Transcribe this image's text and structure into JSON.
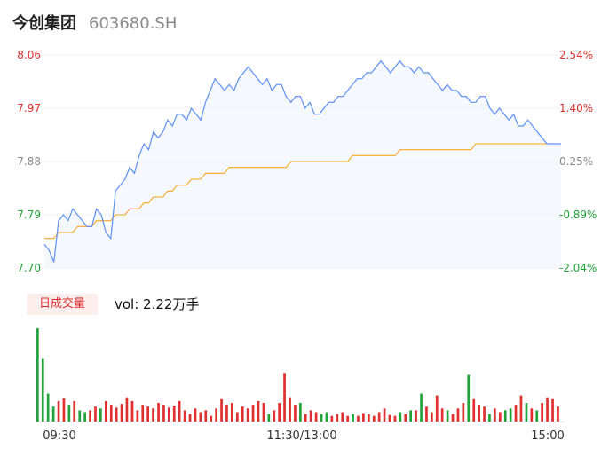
{
  "header": {
    "name": "今创集团",
    "code": "603680.SH"
  },
  "volume_panel": {
    "tab_label": "日成交量",
    "readout_label": "vol: ",
    "readout_value": "2.22万手"
  },
  "colors": {
    "price_line": "#5b8ff9",
    "avg_line": "#f5a623",
    "up": "#e03030",
    "down": "#22a33a",
    "neutral": "#8a8a8a",
    "area_fill": "#eef3fc"
  },
  "chart_data": [
    {
      "type": "line",
      "title": "",
      "prev_close": 7.86,
      "ylim": [
        7.7,
        8.06
      ],
      "y_ticks": [
        "8.06",
        "7.97",
        "7.88",
        "7.79",
        "7.70"
      ],
      "y_ticks_right": [
        "2.54%",
        "1.40%",
        "0.25%",
        "-0.89%",
        "-2.04%"
      ],
      "x_ticks": [
        "09:30",
        "11:30/13:00",
        "15:00"
      ],
      "series": [
        {
          "role": "price",
          "values": [
            7.74,
            7.73,
            7.71,
            7.78,
            7.79,
            7.78,
            7.8,
            7.79,
            7.78,
            7.77,
            7.77,
            7.8,
            7.79,
            7.76,
            7.75,
            7.83,
            7.84,
            7.85,
            7.87,
            7.86,
            7.89,
            7.91,
            7.9,
            7.93,
            7.92,
            7.93,
            7.95,
            7.94,
            7.96,
            7.96,
            7.95,
            7.97,
            7.96,
            7.95,
            7.98,
            8.0,
            8.02,
            8.01,
            8.0,
            8.01,
            8.0,
            8.02,
            8.03,
            8.04,
            8.03,
            8.02,
            8.01,
            8.02,
            8.0,
            8.01,
            8.01,
            7.99,
            7.98,
            7.99,
            7.99,
            7.97,
            7.98,
            7.96,
            7.96,
            7.97,
            7.98,
            7.98,
            7.99,
            7.99,
            8.0,
            8.01,
            8.02,
            8.02,
            8.03,
            8.03,
            8.04,
            8.05,
            8.04,
            8.03,
            8.04,
            8.05,
            8.04,
            8.04,
            8.03,
            8.04,
            8.03,
            8.03,
            8.02,
            8.01,
            8.0,
            8.01,
            8.0,
            8.0,
            7.99,
            7.99,
            7.98,
            7.98,
            7.99,
            7.99,
            7.97,
            7.96,
            7.97,
            7.96,
            7.95,
            7.96,
            7.94,
            7.94,
            7.95,
            7.94,
            7.93,
            7.92,
            7.91,
            7.91,
            7.91,
            7.91
          ]
        },
        {
          "role": "average",
          "values": [
            7.75,
            7.75,
            7.75,
            7.76,
            7.76,
            7.76,
            7.76,
            7.77,
            7.77,
            7.77,
            7.77,
            7.78,
            7.78,
            7.78,
            7.78,
            7.79,
            7.79,
            7.79,
            7.8,
            7.8,
            7.8,
            7.81,
            7.81,
            7.82,
            7.82,
            7.82,
            7.83,
            7.83,
            7.84,
            7.84,
            7.84,
            7.85,
            7.85,
            7.85,
            7.86,
            7.86,
            7.86,
            7.86,
            7.86,
            7.87,
            7.87,
            7.87,
            7.87,
            7.87,
            7.87,
            7.87,
            7.87,
            7.87,
            7.87,
            7.87,
            7.87,
            7.87,
            7.88,
            7.88,
            7.88,
            7.88,
            7.88,
            7.88,
            7.88,
            7.88,
            7.88,
            7.88,
            7.88,
            7.88,
            7.88,
            7.89,
            7.89,
            7.89,
            7.89,
            7.89,
            7.89,
            7.89,
            7.89,
            7.89,
            7.89,
            7.9,
            7.9,
            7.9,
            7.9,
            7.9,
            7.9,
            7.9,
            7.9,
            7.9,
            7.9,
            7.9,
            7.9,
            7.9,
            7.9,
            7.9,
            7.9,
            7.91,
            7.91,
            7.91,
            7.91,
            7.91,
            7.91,
            7.91,
            7.91,
            7.91,
            7.91,
            7.91,
            7.91,
            7.91,
            7.91,
            7.91,
            7.91,
            7.91,
            7.91,
            7.91
          ]
        }
      ]
    },
    {
      "type": "bar",
      "title": "日成交量",
      "series": [
        {
          "name": "volume",
          "values": [
            100,
            68,
            30,
            16,
            22,
            25,
            18,
            22,
            12,
            10,
            12,
            16,
            14,
            22,
            18,
            15,
            19,
            26,
            22,
            12,
            18,
            16,
            14,
            20,
            18,
            15,
            17,
            22,
            12,
            8,
            14,
            10,
            12,
            6,
            14,
            24,
            18,
            20,
            10,
            16,
            14,
            18,
            22,
            20,
            8,
            12,
            20,
            52,
            26,
            18,
            20,
            8,
            12,
            10,
            8,
            10,
            6,
            8,
            10,
            6,
            8,
            6,
            9,
            8,
            6,
            10,
            14,
            7,
            6,
            10,
            8,
            12,
            12,
            30,
            16,
            10,
            28,
            14,
            12,
            8,
            14,
            20,
            50,
            24,
            18,
            16,
            8,
            14,
            10,
            12,
            14,
            18,
            28,
            20,
            14,
            12,
            20,
            26,
            24,
            16
          ],
          "direction": [
            "down",
            "down",
            "down",
            "down",
            "up",
            "up",
            "down",
            "up",
            "down",
            "down",
            "up",
            "up",
            "down",
            "up",
            "up",
            "up",
            "up",
            "up",
            "up",
            "up",
            "up",
            "up",
            "up",
            "up",
            "up",
            "up",
            "up",
            "up",
            "up",
            "up",
            "up",
            "up",
            "up",
            "up",
            "up",
            "up",
            "up",
            "up",
            "up",
            "up",
            "up",
            "up",
            "up",
            "up",
            "down",
            "up",
            "up",
            "up",
            "up",
            "up",
            "down",
            "up",
            "up",
            "up",
            "down",
            "down",
            "up",
            "up",
            "up",
            "up",
            "down",
            "up",
            "up",
            "up",
            "up",
            "up",
            "up",
            "up",
            "up",
            "down",
            "up",
            "down",
            "up",
            "down",
            "up",
            "up",
            "up",
            "up",
            "down",
            "up",
            "up",
            "up",
            "down",
            "up",
            "up",
            "up",
            "down",
            "up",
            "up",
            "down",
            "down",
            "up",
            "up",
            "down",
            "up",
            "down",
            "up",
            "up",
            "up",
            "up"
          ]
        }
      ]
    }
  ]
}
